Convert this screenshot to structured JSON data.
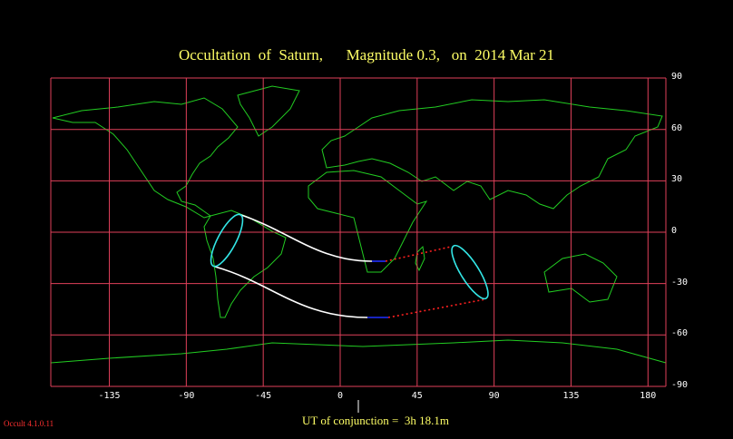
{
  "title": {
    "object": "Occultation  of  Saturn,",
    "magnitude": "Magnitude 0.3,",
    "date": "on  2014 Mar 21"
  },
  "lat_labels": [
    "90",
    "60",
    "30",
    "0",
    "-30",
    "-60",
    "-90"
  ],
  "lon_labels": [
    "-135",
    "-90",
    "-45",
    "0",
    "45",
    "90",
    "135",
    "180"
  ],
  "conjunction": "UT of conjunction =  3h 18.1m",
  "version": "Occult 4.1.0.11",
  "colors": {
    "grid": "#e0405a",
    "coast": "#22cc22",
    "limit": "#ffffff",
    "ellipse": "#33e6e6",
    "daylight": "#ff2020",
    "twilight": "#2030ff",
    "title": "#ffff66"
  }
}
